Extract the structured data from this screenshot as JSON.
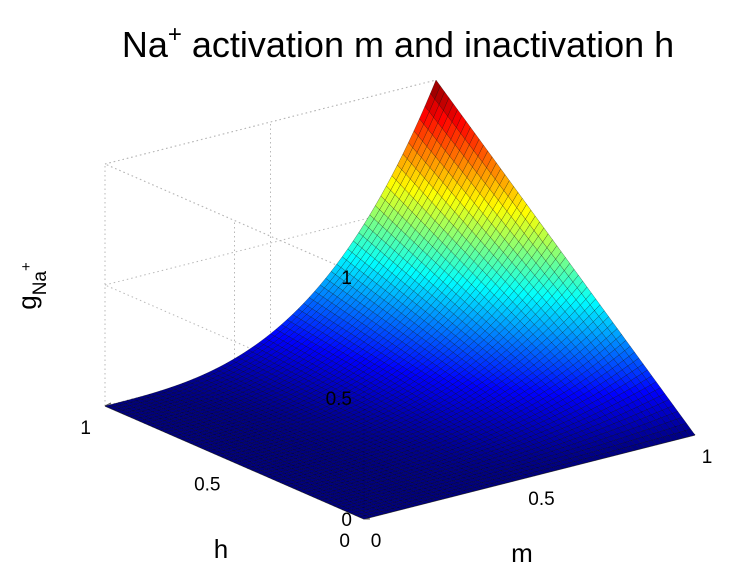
{
  "chart_data": {
    "type": "surface",
    "title": "Na",
    "title_sup": "+",
    "title_rest": " activation m and inactivation h",
    "xlabel": "m",
    "ylabel": "h",
    "zlabel": "g",
    "zlabel_sub": "Na",
    "zlabel_sup": "+",
    "x_ticks": [
      "0",
      "0.5",
      "1"
    ],
    "y_ticks": [
      "0",
      "0.5",
      "1"
    ],
    "z_ticks": [
      "0",
      "0.5",
      "1"
    ],
    "xlim": [
      0,
      1
    ],
    "ylim": [
      0,
      1
    ],
    "zlim": [
      0,
      1
    ],
    "function": "g = m^3 * h",
    "grid": true,
    "colormap": "jet",
    "mesh_resolution": 60
  }
}
